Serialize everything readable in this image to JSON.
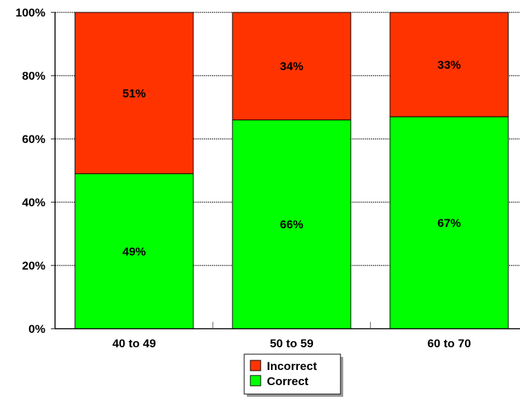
{
  "chart_data": {
    "type": "bar",
    "stacked": true,
    "categories": [
      "40 to 49",
      "50 to 59",
      "60 to 70"
    ],
    "series": [
      {
        "name": "Correct",
        "values": [
          49,
          66,
          67
        ],
        "labels": [
          "49%",
          "66%",
          "67%"
        ],
        "color": "#00ff00"
      },
      {
        "name": "Incorrect",
        "values": [
          51,
          34,
          33
        ],
        "labels": [
          "51%",
          "34%",
          "33%"
        ],
        "color": "#ff3300"
      }
    ],
    "y_ticks": [
      "0%",
      "20%",
      "40%",
      "60%",
      "80%",
      "100%"
    ],
    "ylim": [
      0,
      100
    ],
    "grid": true,
    "legend": {
      "position": "bottom",
      "entries": [
        "Incorrect",
        "Correct"
      ]
    }
  }
}
